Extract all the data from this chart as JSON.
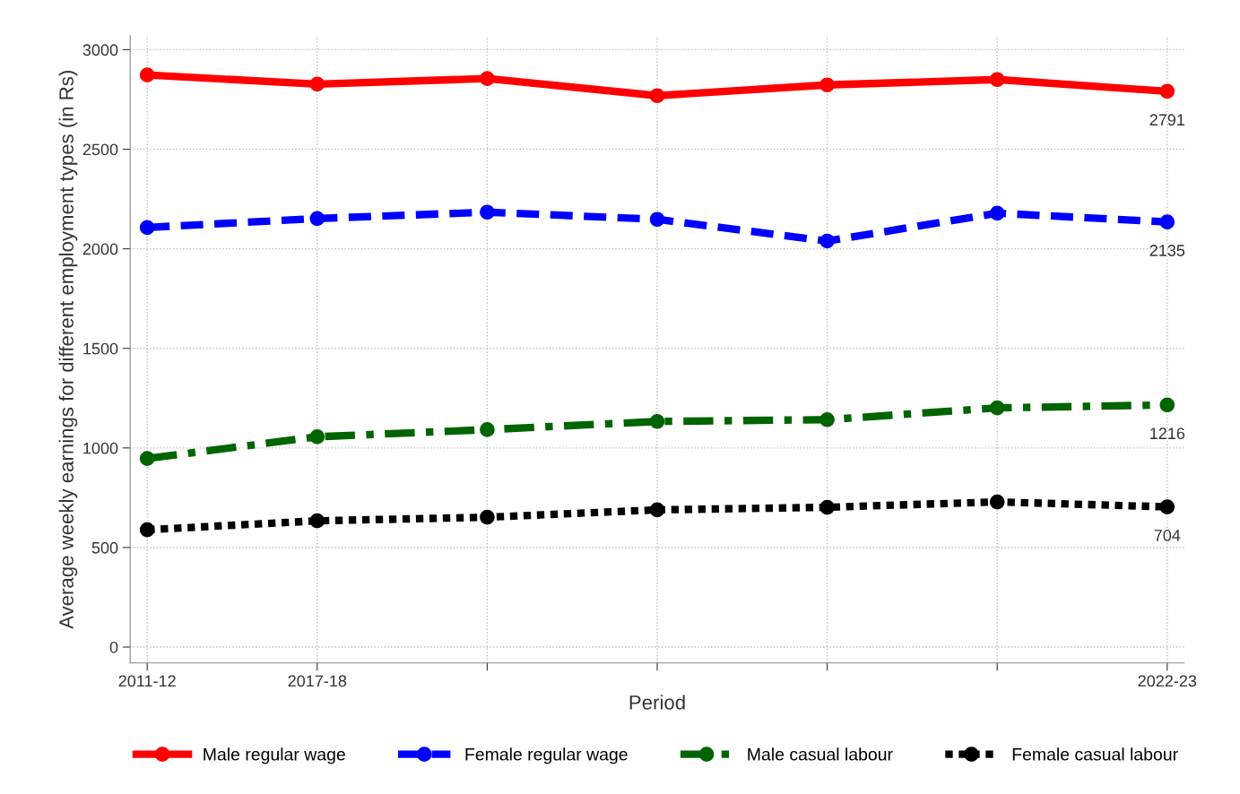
{
  "chart_data": {
    "type": "line",
    "xlabel": "Period",
    "ylabel": "Average weekly earnings for different employment types (in Rs)",
    "categories": [
      "2011-12",
      "2017-18",
      null,
      null,
      null,
      null,
      "2022-23"
    ],
    "ylim": [
      -80,
      3070
    ],
    "yticks": [
      0,
      500,
      1000,
      1500,
      2000,
      2500,
      3000
    ],
    "grid": true,
    "legend": "bottom",
    "marker": "circle",
    "series": [
      {
        "name": "Male regular wage",
        "color": "#ff0000",
        "line_style": "solid",
        "values": [
          2873,
          2827,
          2855,
          2769,
          2823,
          2850,
          2791
        ],
        "value_labels": [
          null,
          null,
          null,
          null,
          null,
          null,
          "2791"
        ]
      },
      {
        "name": "Female regular wage",
        "color": "#0000ff",
        "line_style": "dashed",
        "values": [
          2107,
          2152,
          2184,
          2148,
          2039,
          2179,
          2135
        ],
        "value_labels": [
          null,
          null,
          null,
          null,
          null,
          null,
          "2135"
        ]
      },
      {
        "name": "Male casual labour",
        "color": "#006400",
        "line_style": "dashdot",
        "values": [
          947,
          1056,
          1092,
          1133,
          1142,
          1201,
          1216
        ],
        "value_labels": [
          null,
          null,
          null,
          null,
          null,
          null,
          "1216"
        ]
      },
      {
        "name": "Female casual labour",
        "color": "#000000",
        "line_style": "dotted",
        "values": [
          589,
          634,
          652,
          689,
          702,
          729,
          704
        ],
        "value_labels": [
          null,
          null,
          null,
          null,
          null,
          null,
          "704"
        ]
      }
    ]
  }
}
